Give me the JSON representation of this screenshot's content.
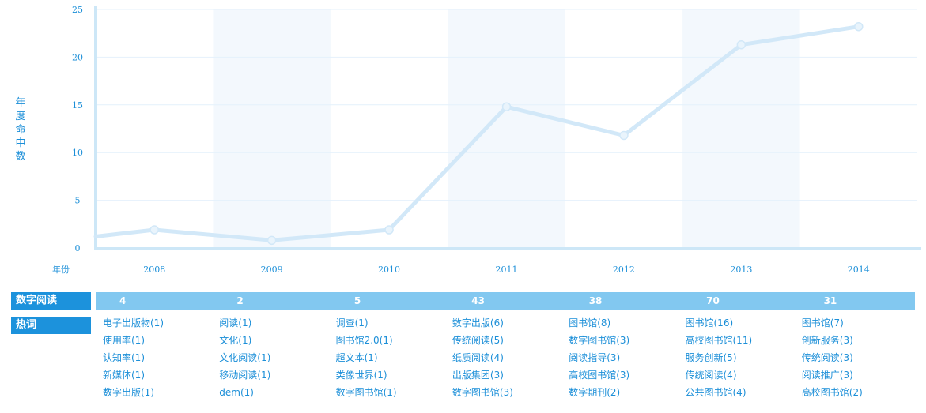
{
  "chart_data": {
    "type": "line",
    "x": [
      "2008",
      "2009",
      "2010",
      "2011",
      "2012",
      "2013",
      "2014"
    ],
    "xlabel": "年份",
    "ylabel": "年度命中数",
    "y_ticks": [
      "0",
      "5",
      "10",
      "15",
      "20",
      "25"
    ],
    "ylim": [
      0,
      25
    ],
    "series": [
      {
        "values": [
          1.9,
          0.8,
          1.9,
          14.8,
          11.8,
          21.3,
          23.2
        ]
      }
    ],
    "grid": true,
    "legend": "none",
    "colors": {
      "line": "#d2e8f8",
      "axis": "#cde7f7",
      "band": "#f3f8fd",
      "text": "#1c8fd8"
    }
  },
  "summary": {
    "label": "数字阅读",
    "values": [
      "4",
      "2",
      "5",
      "43",
      "38",
      "70",
      "31"
    ]
  },
  "hotwords": {
    "label": "热词",
    "columns": [
      [
        "电子出版物(1)",
        "使用率(1)",
        "认知率(1)",
        "新媒体(1)",
        "数字出版(1)"
      ],
      [
        "阅读(1)",
        "文化(1)",
        "文化阅读(1)",
        "移动阅读(1)",
        "dem(1)"
      ],
      [
        "调查(1)",
        "图书馆2.0(1)",
        "超文本(1)",
        "类像世界(1)",
        "数字图书馆(1)"
      ],
      [
        "数字出版(6)",
        "传统阅读(5)",
        "纸质阅读(4)",
        "出版集团(3)",
        "数字图书馆(3)"
      ],
      [
        "图书馆(8)",
        "数字图书馆(3)",
        "阅读指导(3)",
        "高校图书馆(3)",
        "数字期刊(2)"
      ],
      [
        "图书馆(16)",
        "高校图书馆(11)",
        "服务创新(5)",
        "传统阅读(4)",
        "公共图书馆(4)"
      ],
      [
        "图书馆(7)",
        "创新服务(3)",
        "传统阅读(3)",
        "阅读推广(3)",
        "高校图书馆(2)"
      ]
    ]
  }
}
